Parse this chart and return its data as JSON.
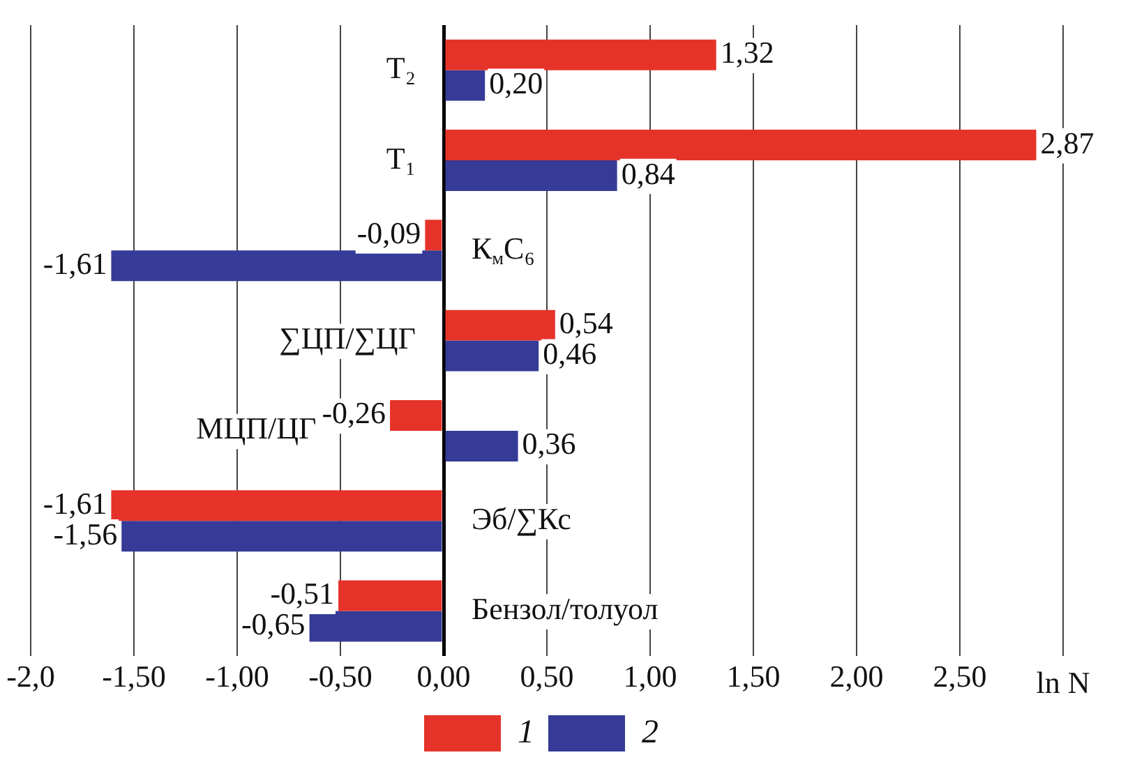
{
  "chart_data": {
    "type": "bar",
    "orientation": "horizontal",
    "categories": [
      "Т₂",
      "Т₁",
      "К$_{м}$С₆",
      "∑ЦП/∑ЦГ",
      "МЦП/ЦГ",
      "Эб/∑Кс",
      "Бензол/толуол"
    ],
    "series": [
      {
        "name": "1",
        "color": "#e5332a",
        "values": [
          1.32,
          2.87,
          -0.09,
          0.54,
          -0.26,
          -1.61,
          -0.51
        ],
        "value_labels": [
          "1,32",
          "2,87",
          "-0,09",
          "0,54",
          "-0,26",
          "-1,61",
          "-0,51"
        ]
      },
      {
        "name": "2",
        "color": "#353b96",
        "values": [
          0.2,
          0.84,
          -1.61,
          0.46,
          0.36,
          -1.56,
          -0.65
        ],
        "value_labels": [
          "0,20",
          "0,84",
          "-1,61",
          "0,46",
          "0,36",
          "-1,56",
          "-0,65"
        ]
      }
    ],
    "xlabel": "ln N",
    "xlim": [
      -2,
      3
    ],
    "xticks": [
      {
        "value": -2,
        "label": "-2,0"
      },
      {
        "value": -1.5,
        "label": "-1,50"
      },
      {
        "value": -1,
        "label": "-1,00"
      },
      {
        "value": -0.5,
        "label": "-0,50"
      },
      {
        "value": 0,
        "label": "0,00"
      },
      {
        "value": 0.5,
        "label": "0,50"
      },
      {
        "value": 1,
        "label": "1,00"
      },
      {
        "value": 1.5,
        "label": "1,50"
      },
      {
        "value": 2,
        "label": "2,00"
      },
      {
        "value": 2.5,
        "label": "2,50"
      },
      {
        "value": 3,
        "label": null
      }
    ],
    "grid": "x",
    "legend": "bottom",
    "tick_labels": "x"
  }
}
